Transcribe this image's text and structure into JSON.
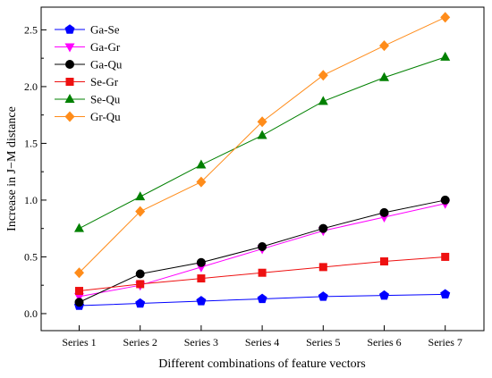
{
  "chart_data": {
    "type": "line",
    "title": "",
    "xlabel": "Different combinations of feature vectors",
    "ylabel": "Increase in J−M distance",
    "categories": [
      "Series 1",
      "Series 2",
      "Series 3",
      "Series 4",
      "Series 5",
      "Series 6",
      "Series 7"
    ],
    "ylim": [
      -0.15,
      2.7
    ],
    "yticks": [
      "0.0",
      "0.5",
      "1.0",
      "1.5",
      "2.0",
      "2.5"
    ],
    "ytick_values": [
      0.0,
      0.5,
      1.0,
      1.5,
      2.0,
      2.5
    ],
    "grid": false,
    "legend_position": "top-left",
    "series": [
      {
        "name": "Ga-Se",
        "color": "#0000ff",
        "marker": "pentagon",
        "values": [
          0.07,
          0.09,
          0.11,
          0.13,
          0.15,
          0.16,
          0.17
        ]
      },
      {
        "name": "Ga-Gr",
        "color": "#ff00ff",
        "marker": "triangle-down",
        "values": [
          0.15,
          0.25,
          0.41,
          0.57,
          0.73,
          0.85,
          0.97
        ]
      },
      {
        "name": "Ga-Qu",
        "color": "#000000",
        "marker": "circle",
        "values": [
          0.1,
          0.35,
          0.45,
          0.59,
          0.75,
          0.89,
          1.0
        ]
      },
      {
        "name": "Se-Gr",
        "color": "#ee1111",
        "marker": "square",
        "values": [
          0.2,
          0.26,
          0.31,
          0.36,
          0.41,
          0.46,
          0.5
        ]
      },
      {
        "name": "Se-Qu",
        "color": "#008000",
        "marker": "triangle-up",
        "values": [
          0.75,
          1.03,
          1.31,
          1.57,
          1.87,
          2.08,
          2.26
        ]
      },
      {
        "name": "Gr-Qu",
        "color": "#ff8c1a",
        "marker": "diamond",
        "values": [
          0.36,
          0.9,
          1.16,
          1.69,
          2.1,
          2.36,
          2.61
        ]
      }
    ]
  }
}
